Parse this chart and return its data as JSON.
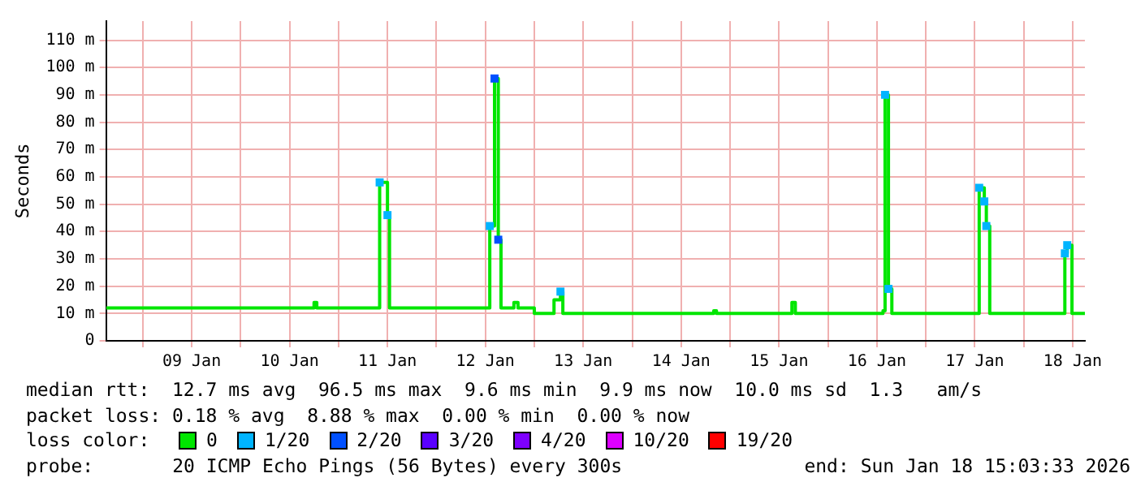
{
  "chart_data": {
    "type": "step",
    "ylabel": "Seconds",
    "xlim": [
      "2026-01-08T15:00",
      "2026-01-18T15:00"
    ],
    "xticks": [
      {
        "value": "2026-01-09",
        "label": null
      },
      {
        "value": "2026-01-09T12:00",
        "label": "09 Jan"
      },
      {
        "value": "2026-01-10",
        "label": null
      },
      {
        "value": "2026-01-10T12:00",
        "label": "10 Jan"
      },
      {
        "value": "2026-01-11",
        "label": null
      },
      {
        "value": "2026-01-11T12:00",
        "label": "11 Jan"
      },
      {
        "value": "2026-01-12",
        "label": null
      },
      {
        "value": "2026-01-12T12:00",
        "label": "12 Jan"
      },
      {
        "value": "2026-01-13",
        "label": null
      },
      {
        "value": "2026-01-13T12:00",
        "label": "13 Jan"
      },
      {
        "value": "2026-01-14",
        "label": null
      },
      {
        "value": "2026-01-14T12:00",
        "label": "14 Jan"
      },
      {
        "value": "2026-01-15",
        "label": null
      },
      {
        "value": "2026-01-15T12:00",
        "label": "15 Jan"
      },
      {
        "value": "2026-01-16",
        "label": null
      },
      {
        "value": "2026-01-16T12:00",
        "label": "16 Jan"
      },
      {
        "value": "2026-01-17",
        "label": null
      },
      {
        "value": "2026-01-17T12:00",
        "label": "17 Jan"
      },
      {
        "value": "2026-01-18",
        "label": null
      },
      {
        "value": "2026-01-18T12:00",
        "label": "18 Jan"
      }
    ],
    "ylim": [
      0,
      117
    ],
    "yticks": [
      0,
      {
        "value": 10,
        "label": "10 m"
      },
      {
        "value": 20,
        "label": "20 m"
      },
      {
        "value": 30,
        "label": "30 m"
      },
      {
        "value": 40,
        "label": "40 m"
      },
      {
        "value": 50,
        "label": "50 m"
      },
      {
        "value": 60,
        "label": "60 m"
      },
      {
        "value": 70,
        "label": "70 m"
      },
      {
        "value": 80,
        "label": "80 m"
      },
      {
        "value": 90,
        "label": "90 m"
      },
      {
        "value": 100,
        "label": "100 m"
      },
      {
        "value": 110,
        "label": "110 m"
      }
    ],
    "grid": true,
    "legend": "bottom",
    "series": [
      {
        "name": "0",
        "color": "#00e600",
        "x": [
          "2026-01-08T15:00",
          "2026-01-10T18:00",
          "2026-01-10T18:40",
          "2026-01-11T10:05",
          "2026-01-11T12:00",
          "2026-01-11T12:30",
          "2026-01-12T13:05",
          "2026-01-12T14:15",
          "2026-01-12T15:10",
          "2026-01-12T15:50",
          "2026-01-12T19:00",
          "2026-01-12T20:00",
          "2026-01-13",
          "2026-01-13T04:50",
          "2026-01-13T06:25",
          "2026-01-13T07:00",
          "2026-01-14T20:00",
          "2026-01-14T20:40",
          "2026-01-15T15:10",
          "2026-01-15T16:00",
          "2026-01-16T13:30",
          "2026-01-16T14:00",
          "2026-01-16T14:50",
          "2026-01-16T15:40",
          "2026-01-17T13:05",
          "2026-01-17T14:20",
          "2026-01-17T14:50",
          "2026-01-17T15:40",
          "2026-01-18T10:05",
          "2026-01-18T10:40",
          "2026-01-18T11:50",
          "2026-01-18T15:00"
        ],
        "values": [
          12,
          14,
          12,
          58,
          46,
          12,
          42,
          96,
          37,
          12,
          14,
          12,
          10,
          15,
          18,
          10,
          11,
          10,
          14,
          10,
          11,
          90,
          19,
          10,
          56,
          51,
          42,
          10,
          32,
          35,
          10,
          10
        ]
      },
      {
        "name": "1/20",
        "type": "scatter",
        "marker": "square",
        "color": "#00b4ff",
        "x": [
          "2026-01-11T10:05",
          "2026-01-11T12:00",
          "2026-01-12T13:05",
          "2026-01-13T06:25",
          "2026-01-16T14:00",
          "2026-01-16T14:50",
          "2026-01-17T13:05",
          "2026-01-17T14:20",
          "2026-01-17T14:50",
          "2026-01-18T10:05",
          "2026-01-18T10:40"
        ],
        "values": [
          58,
          46,
          42,
          18,
          90,
          19,
          56,
          51,
          42,
          32,
          35
        ]
      },
      {
        "name": "2/20",
        "type": "scatter",
        "marker": "square",
        "color": "#0050ff",
        "x": [
          "2026-01-12T14:15",
          "2026-01-12T15:10"
        ],
        "values": [
          96,
          37
        ]
      },
      {
        "name": "3/20",
        "type": "scatter",
        "marker": "square",
        "color": "#5a00ff"
      },
      {
        "name": "4/20",
        "type": "scatter",
        "marker": "square",
        "color": "#7e00ff"
      },
      {
        "name": "10/20",
        "type": "scatter",
        "marker": "square",
        "color": "#dd00ff"
      },
      {
        "name": "19/20",
        "type": "scatter",
        "marker": "square",
        "color": "#ff0000"
      }
    ],
    "annotations": [
      "median rtt:  12.7 ms avg  96.5 ms max  9.6 ms min  9.9 ms now  10.0 ms sd  1.3   am/s",
      "packet loss: 0.18 % avg  8.88 % max  0.00 % min  0.00 % now",
      "loss color:",
      "probe:",
      "20 ICMP Echo Pings (56 Bytes) every 300s",
      "end: Sun Jan 18 15:03:33 2026"
    ]
  }
}
